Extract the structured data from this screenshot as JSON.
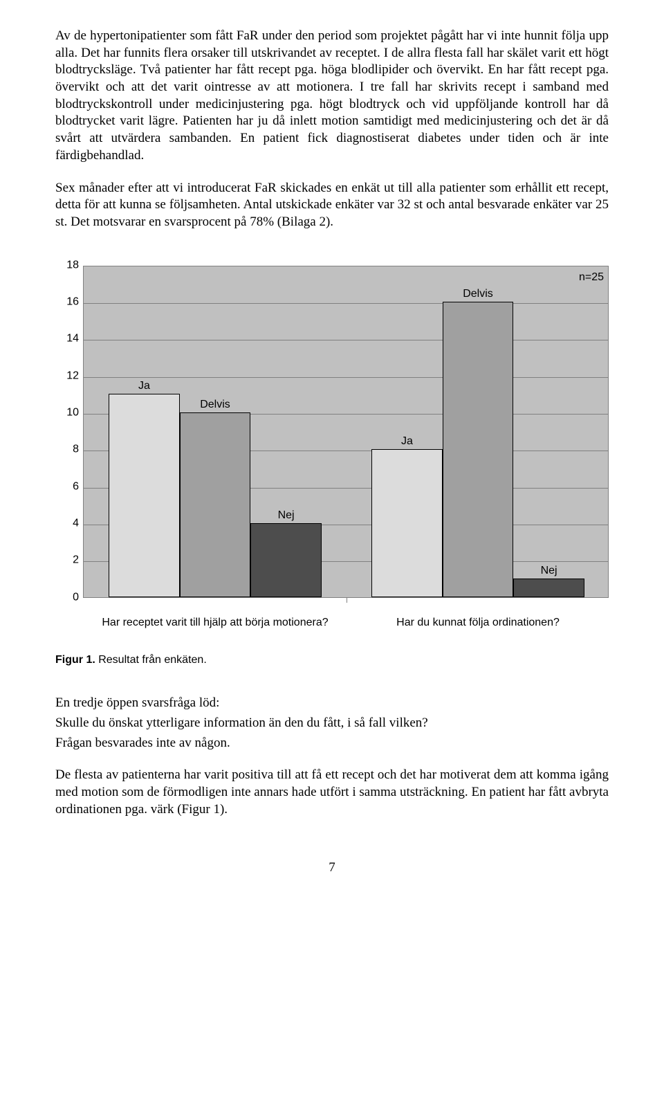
{
  "paragraphs": {
    "p1": "Av de hypertonipatienter som fått FaR under den period som projektet pågått har vi inte hunnit följa upp alla. Det har funnits flera orsaker till utskrivandet av receptet. I de allra flesta fall har skälet varit ett högt blodtrycksläge. Två patienter har fått recept pga. höga blodlipider och övervikt. En har fått recept pga. övervikt och att det varit ointresse av att motionera. I tre fall har skrivits recept i samband med blodtryckskontroll under medicinjustering pga. högt blodtryck och vid uppföljande kontroll har då blodtrycket varit lägre. Patienten har ju då inlett motion samtidigt med medicinjustering och det är då svårt att utvärdera sambanden. En patient fick diagnostiserat diabetes under tiden och är inte färdigbehandlad.",
    "p2": "Sex månader efter att vi introducerat FaR skickades en enkät ut till alla patienter som erhållit ett recept, detta för att kunna se följsamheten. Antal utskickade enkäter var 32 st och antal besvarade enkäter var 25 st. Det motsvarar en svarsprocent på 78% (Bilaga 2).",
    "p3": "En tredje öppen svarsfråga löd:",
    "p4": "Skulle du önskat ytterligare information än den du fått, i så fall vilken?",
    "p5": "Frågan besvarades inte av någon.",
    "p6": "De flesta av patienterna har varit positiva till att få ett recept och det har motiverat dem att komma igång med motion som de förmodligen inte annars hade utfört i samma utsträckning. En patient har fått avbryta ordinationen pga. värk (Figur 1)."
  },
  "figure_caption_bold": "Figur 1.",
  "figure_caption_rest": " Resultat från enkäten.",
  "page_number": "7",
  "chart": {
    "type": "bar",
    "n_label": "n=25",
    "ylim": [
      0,
      18
    ],
    "ytick_step": 2,
    "yticks": [
      0,
      2,
      4,
      6,
      8,
      10,
      12,
      14,
      16,
      18
    ],
    "background_color": "#c0c0c0",
    "grid_color": "#808080",
    "border_color": "#000000",
    "label_fontsize": 16,
    "groups": [
      {
        "category": "Har receptet varit till hjälp att börja motionera?",
        "bars": [
          {
            "label": "Ja",
            "value": 11,
            "color": "#dcdcdc"
          },
          {
            "label": "Delvis",
            "value": 10,
            "color": "#a0a0a0"
          },
          {
            "label": "Nej",
            "value": 4,
            "color": "#4d4d4d"
          }
        ]
      },
      {
        "category": "Har du kunnat följa ordinationen?",
        "bars": [
          {
            "label": "Ja",
            "value": 8,
            "color": "#dcdcdc"
          },
          {
            "label": "Delvis",
            "value": 16,
            "color": "#a0a0a0"
          },
          {
            "label": "Nej",
            "value": 1,
            "color": "#4d4d4d"
          }
        ]
      }
    ]
  }
}
